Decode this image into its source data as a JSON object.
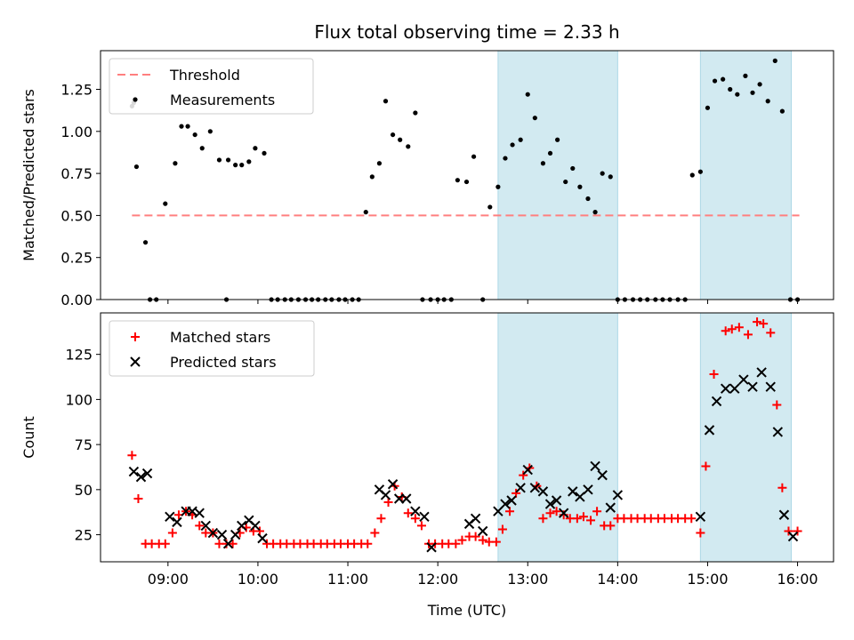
{
  "title": "Flux total observing time = 2.33 h",
  "xlabel": "Time (UTC)",
  "colors": {
    "threshold": "#ff7f7f",
    "measurement": "#000000",
    "matched": "#ff0000",
    "predicted": "#000000",
    "shade": "#add8e6"
  },
  "chart_data": [
    {
      "type": "scatter",
      "name": "top-panel",
      "ylabel": "Matched/Predicted stars",
      "xlim": [
        8.25,
        16.4
      ],
      "ylim": [
        0,
        1.48
      ],
      "yticks": [
        0.0,
        0.25,
        0.5,
        0.75,
        1.0,
        1.25
      ],
      "yticklabels": [
        "0.00",
        "0.25",
        "0.50",
        "0.75",
        "1.00",
        "1.25"
      ],
      "grid": false,
      "legend": "upper-left",
      "legend_labels": {
        "threshold": "Threshold",
        "measurements": "Measurements"
      },
      "shaded_ranges": [
        [
          12.67,
          14.0
        ],
        [
          14.92,
          15.93
        ]
      ],
      "threshold": {
        "value": 0.5,
        "x_range": [
          8.6,
          16.02
        ]
      },
      "measurements": {
        "x": [
          8.6,
          8.62,
          8.65,
          8.75,
          8.8,
          8.87,
          8.97,
          9.08,
          9.15,
          9.22,
          9.3,
          9.38,
          9.47,
          9.57,
          9.65,
          9.67,
          9.75,
          9.82,
          9.9,
          9.97,
          10.07,
          10.15,
          10.22,
          10.3,
          10.37,
          10.45,
          10.53,
          10.6,
          10.67,
          10.75,
          10.82,
          10.9,
          10.97,
          11.05,
          11.12,
          11.2,
          11.27,
          11.35,
          11.42,
          11.5,
          11.58,
          11.67,
          11.75,
          11.83,
          11.92,
          12.0,
          12.07,
          12.15,
          12.22,
          12.32,
          12.4,
          12.5,
          12.58,
          12.67,
          12.75,
          12.83,
          12.92,
          13.0,
          13.08,
          13.17,
          13.25,
          13.33,
          13.42,
          13.5,
          13.58,
          13.67,
          13.75,
          13.83,
          13.92,
          14.0,
          14.08,
          14.17,
          14.25,
          14.33,
          14.42,
          14.5,
          14.58,
          14.67,
          14.75,
          14.83,
          14.92,
          15.0,
          15.08,
          15.17,
          15.25,
          15.33,
          15.42,
          15.5,
          15.58,
          15.67,
          15.75,
          15.83,
          15.92,
          16.0
        ],
        "y": [
          1.15,
          1.17,
          0.79,
          0.34,
          0.0,
          0.0,
          0.57,
          0.81,
          1.03,
          1.03,
          0.98,
          0.9,
          1.0,
          0.83,
          0.0,
          0.83,
          0.8,
          0.8,
          0.82,
          0.9,
          0.87,
          0.0,
          0.0,
          0.0,
          0.0,
          0.0,
          0.0,
          0.0,
          0.0,
          0.0,
          0.0,
          0.0,
          0.0,
          0.0,
          0.0,
          0.52,
          0.73,
          0.81,
          1.18,
          0.98,
          0.95,
          0.91,
          1.11,
          0.0,
          0.0,
          0.0,
          0.0,
          0.0,
          0.71,
          0.7,
          0.85,
          0.0,
          0.55,
          0.67,
          0.84,
          0.92,
          0.95,
          1.22,
          1.08,
          0.81,
          0.87,
          0.95,
          0.7,
          0.78,
          0.67,
          0.6,
          0.52,
          0.75,
          0.73,
          0.0,
          0.0,
          0.0,
          0.0,
          0.0,
          0.0,
          0.0,
          0.0,
          0.0,
          0.0,
          0.74,
          0.76,
          1.14,
          1.3,
          1.31,
          1.25,
          1.22,
          1.33,
          1.23,
          1.28,
          1.18,
          1.42,
          1.12,
          0.0,
          0.0
        ]
      }
    },
    {
      "type": "scatter",
      "name": "bottom-panel",
      "ylabel": "Count",
      "xlim": [
        8.25,
        16.4
      ],
      "ylim": [
        10,
        148
      ],
      "yticks": [
        25,
        50,
        75,
        100,
        125
      ],
      "yticklabels": [
        "25",
        "50",
        "75",
        "100",
        "125"
      ],
      "xticks": [
        9,
        10,
        11,
        12,
        13,
        14,
        15,
        16
      ],
      "xticklabels": [
        "09:00",
        "10:00",
        "11:00",
        "12:00",
        "13:00",
        "14:00",
        "15:00",
        "16:00"
      ],
      "grid": false,
      "legend": "upper-left",
      "legend_labels": {
        "matched": "Matched stars",
        "predicted": "Predicted stars"
      },
      "shaded_ranges": [
        [
          12.67,
          14.0
        ],
        [
          14.92,
          15.93
        ]
      ],
      "matched": {
        "x": [
          8.6,
          8.67,
          8.75,
          8.82,
          8.9,
          8.97,
          9.05,
          9.12,
          9.2,
          9.27,
          9.35,
          9.42,
          9.5,
          9.57,
          9.65,
          9.72,
          9.8,
          9.87,
          9.95,
          10.02,
          10.1,
          10.17,
          10.25,
          10.32,
          10.4,
          10.47,
          10.55,
          10.62,
          10.7,
          10.77,
          10.85,
          10.92,
          11.0,
          11.07,
          11.15,
          11.22,
          11.3,
          11.37,
          11.45,
          11.52,
          11.6,
          11.67,
          11.75,
          11.82,
          11.9,
          11.97,
          12.05,
          12.12,
          12.2,
          12.27,
          12.35,
          12.42,
          12.5,
          12.57,
          12.65,
          12.72,
          12.8,
          12.87,
          12.95,
          13.02,
          13.1,
          13.17,
          13.25,
          13.32,
          13.4,
          13.47,
          13.55,
          13.62,
          13.7,
          13.77,
          13.85,
          13.92,
          14.0,
          14.07,
          14.15,
          14.22,
          14.3,
          14.37,
          14.45,
          14.52,
          14.6,
          14.67,
          14.75,
          14.82,
          14.92,
          14.98,
          15.07,
          15.2,
          15.27,
          15.35,
          15.45,
          15.55,
          15.62,
          15.7,
          15.77,
          15.83,
          15.9,
          16.0
        ],
        "y": [
          69,
          45,
          20,
          20,
          20,
          20,
          26,
          36,
          38,
          36,
          30,
          26,
          26,
          20,
          20,
          20,
          26,
          29,
          27,
          27,
          20,
          20,
          20,
          20,
          20,
          20,
          20,
          20,
          20,
          20,
          20,
          20,
          20,
          20,
          20,
          20,
          26,
          34,
          43,
          52,
          46,
          37,
          34,
          30,
          20,
          20,
          20,
          20,
          20,
          22,
          24,
          24,
          22,
          21,
          21,
          28,
          38,
          48,
          58,
          62,
          52,
          34,
          37,
          38,
          36,
          34,
          34,
          35,
          33,
          38,
          30,
          30,
          34,
          34,
          34,
          34,
          34,
          34,
          34,
          34,
          34,
          34,
          34,
          34,
          26,
          63,
          114,
          138,
          139,
          140,
          136,
          143,
          142,
          137,
          97,
          51,
          27,
          27
        ]
      },
      "predicted": {
        "x": [
          8.62,
          8.7,
          8.77,
          9.02,
          9.1,
          9.2,
          9.27,
          9.35,
          9.42,
          9.5,
          9.6,
          9.67,
          9.75,
          9.82,
          9.9,
          9.97,
          10.05,
          11.35,
          11.42,
          11.5,
          11.57,
          11.65,
          11.75,
          11.85,
          11.93,
          12.35,
          12.42,
          12.5,
          12.67,
          12.75,
          12.82,
          12.92,
          13.0,
          13.08,
          13.17,
          13.25,
          13.32,
          13.4,
          13.5,
          13.58,
          13.67,
          13.75,
          13.83,
          13.92,
          14.0,
          14.92,
          15.02,
          15.1,
          15.2,
          15.3,
          15.4,
          15.5,
          15.6,
          15.7,
          15.78,
          15.85,
          15.95
        ],
        "y": [
          60,
          57,
          59,
          35,
          32,
          38,
          38,
          37,
          30,
          26,
          25,
          20,
          25,
          30,
          33,
          30,
          23,
          50,
          47,
          53,
          45,
          45,
          38,
          35,
          18,
          31,
          34,
          27,
          38,
          42,
          44,
          51,
          61,
          51,
          49,
          42,
          44,
          37,
          49,
          46,
          50,
          63,
          58,
          40,
          47,
          35,
          83,
          99,
          106,
          106,
          111,
          107,
          115,
          107,
          82,
          36,
          24
        ]
      }
    }
  ]
}
